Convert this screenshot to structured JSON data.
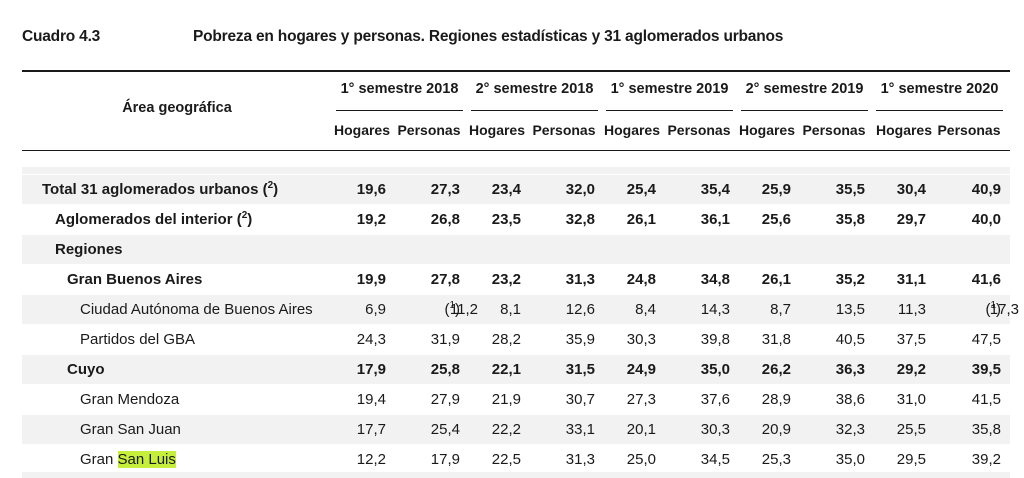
{
  "caption": {
    "label": "Cuadro 4.3",
    "title": "Pobreza en hogares y personas. Regiones estadísticas y 31 aglomerados urbanos"
  },
  "table": {
    "geo_header": "Área geográfica",
    "semesters": [
      "1° semestre 2018",
      "2° semestre 2018",
      "1° semestre 2019",
      "2° semestre 2019",
      "1° semestre 2020"
    ],
    "sub_headers": [
      "Hogares",
      "Personas"
    ],
    "rows": [
      {
        "label": "Total 31 aglomerados urbanos (",
        "note": "2",
        "tail": ")",
        "level": 0,
        "bold": true,
        "values": [
          "19,6",
          "27,3",
          "23,4",
          "32,0",
          "25,4",
          "35,4",
          "25,9",
          "35,5",
          "30,4",
          "40,9"
        ]
      },
      {
        "label": "Aglomerados del interior (",
        "note": "2",
        "tail": ")",
        "level": 1,
        "bold": true,
        "values": [
          "19,2",
          "26,8",
          "23,5",
          "32,8",
          "26,1",
          "36,1",
          "25,6",
          "35,8",
          "29,7",
          "40,0"
        ]
      },
      {
        "label": "Regiones",
        "level": 1,
        "bold": true,
        "values": []
      },
      {
        "label": "Gran Buenos Aires",
        "level": 2,
        "bold": true,
        "values": [
          "19,9",
          "27,8",
          "23,2",
          "31,3",
          "24,8",
          "34,8",
          "26,1",
          "35,2",
          "31,1",
          "41,6"
        ]
      },
      {
        "label": "Ciudad Autónoma de Buenos Aires",
        "level": 3,
        "bold": false,
        "values": [
          "6,9",
          "11,2",
          "8,1",
          "12,6",
          "8,4",
          "14,3",
          "8,7",
          "13,5",
          "11,3",
          "17,3"
        ],
        "value_notes": {
          "1": "1",
          "9": "1"
        }
      },
      {
        "label": "Partidos del GBA",
        "level": 3,
        "bold": false,
        "values": [
          "24,3",
          "31,9",
          "28,2",
          "35,9",
          "30,3",
          "39,8",
          "31,8",
          "40,5",
          "37,5",
          "47,5"
        ]
      },
      {
        "label": "Cuyo",
        "level": 2,
        "bold": true,
        "values": [
          "17,9",
          "25,8",
          "22,1",
          "31,5",
          "24,9",
          "35,0",
          "26,2",
          "36,3",
          "29,2",
          "39,5"
        ]
      },
      {
        "label": "Gran Mendoza",
        "level": 3,
        "bold": false,
        "values": [
          "19,4",
          "27,9",
          "21,9",
          "30,7",
          "27,3",
          "37,6",
          "28,9",
          "38,6",
          "31,0",
          "41,5"
        ]
      },
      {
        "label": "Gran San Juan",
        "level": 3,
        "bold": false,
        "values": [
          "17,7",
          "25,4",
          "22,2",
          "33,1",
          "20,1",
          "30,3",
          "20,9",
          "32,3",
          "25,5",
          "35,8"
        ]
      },
      {
        "label": "Gran ",
        "highlight": "San Luis",
        "level": 3,
        "bold": false,
        "values": [
          "12,2",
          "17,9",
          "22,5",
          "31,3",
          "25,0",
          "34,5",
          "25,3",
          "35,0",
          "29,5",
          "39,2"
        ]
      }
    ]
  },
  "colors": {
    "rule": "#1a1a1a",
    "row_shade": "#f2f2f2",
    "highlight": "#c6ef3c"
  }
}
